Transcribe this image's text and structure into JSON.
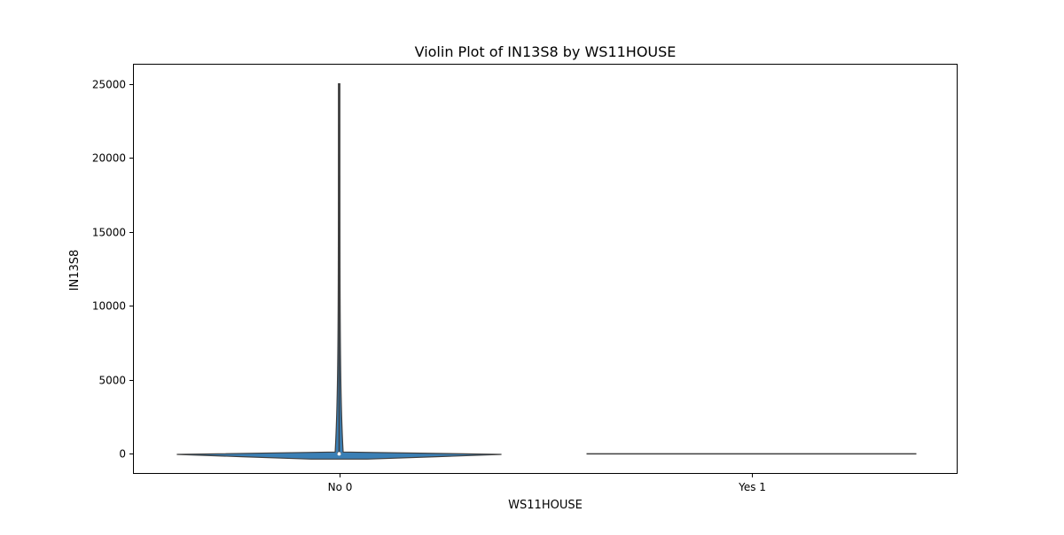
{
  "chart_data": {
    "type": "violin",
    "title": "Violin Plot of IN13S8 by WS11HOUSE",
    "xlabel": "WS11HOUSE",
    "ylabel": "IN13S8",
    "categories": [
      "No 0",
      "Yes 1"
    ],
    "yticks": [
      0,
      5000,
      10000,
      15000,
      20000,
      25000
    ],
    "ylim": [
      -1350,
      26350
    ],
    "grid": false,
    "legend": "none",
    "violins": [
      {
        "category": "No 0",
        "min": 0,
        "q1": 0,
        "median": 0,
        "q3": 100,
        "max": 25000,
        "mode": 200,
        "extent": [
          -350,
          25000
        ],
        "color": "#3a7fb5"
      },
      {
        "category": "Yes 1",
        "min": 0,
        "q1": 0,
        "median": 0,
        "q3": 0,
        "max": 0,
        "extent": [
          0,
          0
        ],
        "color": "#3a7fb5"
      }
    ]
  }
}
